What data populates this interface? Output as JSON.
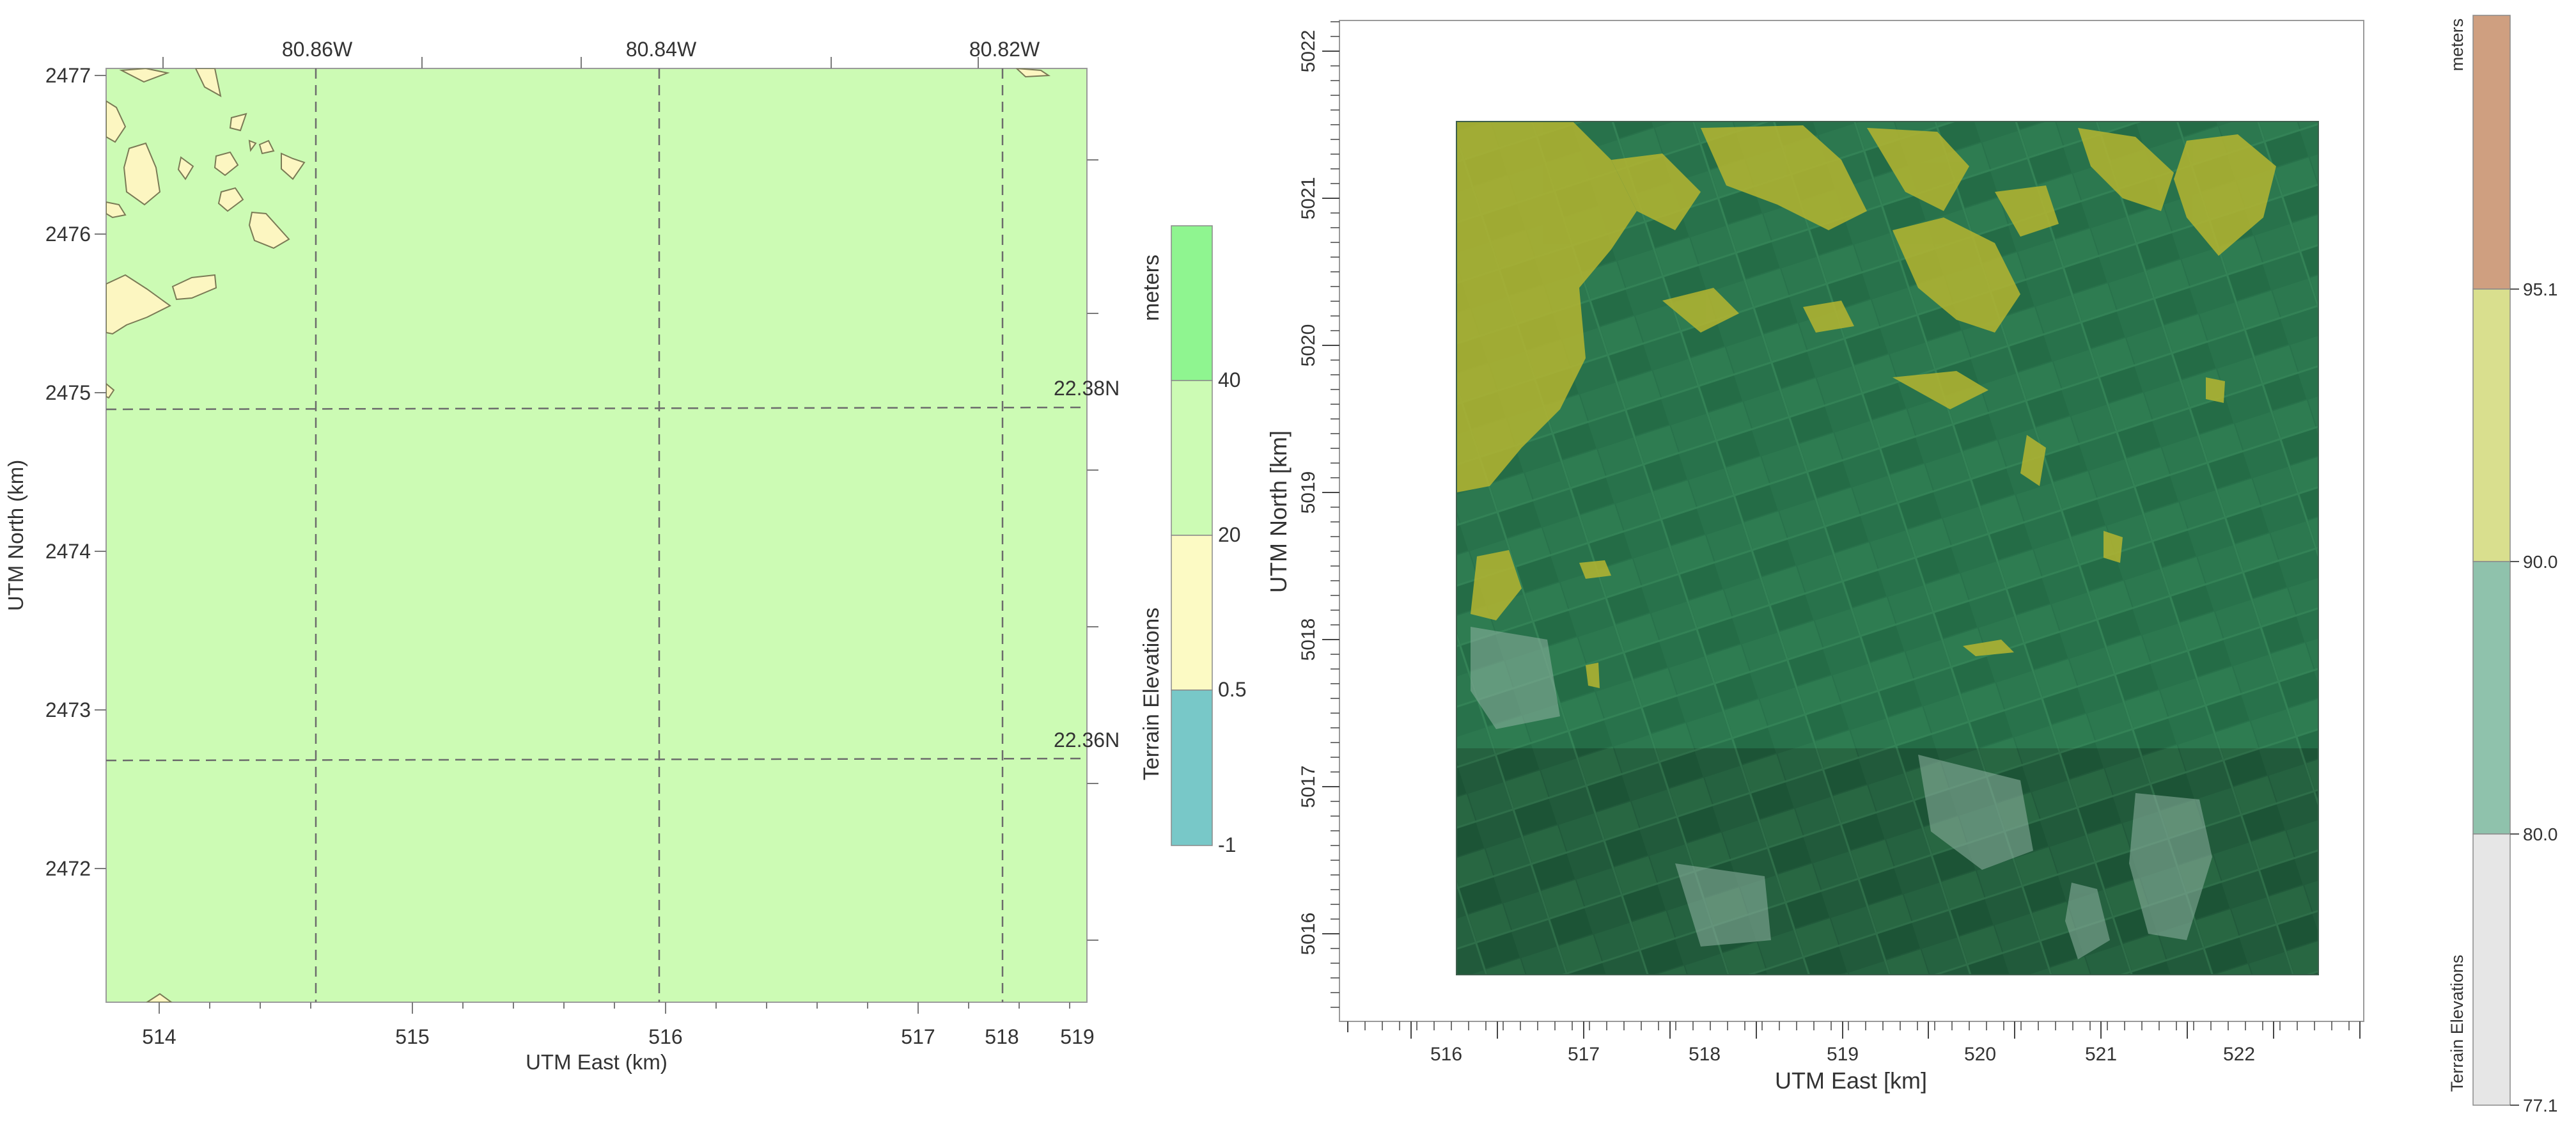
{
  "left_map": {
    "x_axis_label": "UTM East (km)",
    "y_axis_label": "UTM North (km)",
    "x_ticks": [
      "514",
      "515",
      "516",
      "517",
      "518",
      "519"
    ],
    "y_ticks": [
      "2477",
      "2476",
      "2475",
      "2474",
      "2473",
      "2472"
    ],
    "longitude_labels": [
      "80.86W",
      "80.84W",
      "80.82W"
    ],
    "latitude_labels": [
      "22.38N",
      "22.36N"
    ],
    "background_color": "#ccfbb4",
    "patch_color": "#fcf6c1",
    "legend": {
      "title": "Terrain Elevations",
      "unit": "meters",
      "tick_labels": [
        "40",
        "20",
        "0.5",
        "-1"
      ],
      "bands": [
        {
          "range": "above 40",
          "color": "#8ff590"
        },
        {
          "range": "20 - 40",
          "color": "#ccfbb4"
        },
        {
          "range": "0.5 - 20",
          "color": "#fcfac4"
        },
        {
          "range": "-1 - 0.5",
          "color": "#78c8c8"
        }
      ]
    }
  },
  "right_map": {
    "x_axis_label": "UTM East [km]",
    "y_axis_label": "UTM North [km]",
    "x_ticks": [
      "516",
      "517",
      "518",
      "519",
      "520",
      "521",
      "522"
    ],
    "y_ticks": [
      "5022",
      "5021",
      "5020",
      "5019",
      "5018",
      "5017",
      "5016"
    ],
    "legend": {
      "title": "Terrain Elevations",
      "unit": "meters",
      "tick_labels": [
        "95.1",
        "90.0",
        "80.0",
        "77.1"
      ],
      "bands": [
        {
          "range": "above 95.1",
          "color": "#cf9f80"
        },
        {
          "range": "90.0 - 95.1",
          "color": "#d9df8e"
        },
        {
          "range": "80.0 - 90.0",
          "color": "#8fc2ac"
        },
        {
          "range": "77.1 - 80.0",
          "color": "#e6e6e6"
        }
      ]
    },
    "overlay_colors": {
      "low_green": "#2f7d55",
      "high_yellow": "#b5b530",
      "imagery": "#1f5c3c"
    }
  }
}
